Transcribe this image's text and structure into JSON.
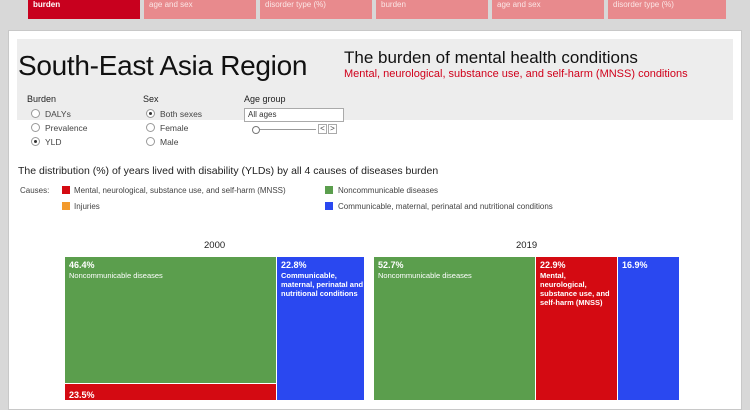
{
  "tabs": [
    {
      "label": "burden",
      "active": true
    },
    {
      "label": "age and sex",
      "active": false
    },
    {
      "label": "disorder type (%)",
      "active": false
    },
    {
      "label": "burden",
      "active": false
    },
    {
      "label": "age and sex",
      "active": false
    },
    {
      "label": "disorder type (%)",
      "active": false
    }
  ],
  "header": {
    "region": "South-East Asia Region",
    "title": "The burden of mental health conditions",
    "subtitle": "Mental, neurological, substance use, and self-harm (MNSS) conditions"
  },
  "controls": {
    "burden_label": "Burden",
    "burden_options": [
      {
        "label": "DALYs",
        "selected": false
      },
      {
        "label": "Prevalence",
        "selected": false
      },
      {
        "label": "YLD",
        "selected": true
      }
    ],
    "sex_label": "Sex",
    "sex_options": [
      {
        "label": "Both sexes",
        "selected": true
      },
      {
        "label": "Female",
        "selected": false
      },
      {
        "label": "Male",
        "selected": false
      }
    ],
    "age_label": "Age group",
    "age_value": "All ages",
    "prev_glyph": "<",
    "next_glyph": ">"
  },
  "distribution_title": "The distribution (%) of years lived with disability (YLDs) by all 4 causes of diseases burden",
  "legend": {
    "causes_label": "Causes:",
    "items": [
      {
        "label": "Mental, neurological, substance use, and self-harm (MNSS)",
        "color": "#d40a12"
      },
      {
        "label": "Injuries",
        "color": "#f39a2c"
      },
      {
        "label": "Noncommunicable diseases",
        "color": "#5b9e4d"
      },
      {
        "label": "Communicable, maternal, perinatal and nutritional conditions",
        "color": "#2a48f0"
      }
    ]
  },
  "chart_data": [
    {
      "type": "treemap",
      "year": "2000",
      "cells": [
        {
          "pct": "46.4%",
          "name": "Noncommunicable diseases",
          "color": "#5b9e4d"
        },
        {
          "pct": "22.8%",
          "name": "Communicable, maternal, perinatal and nutritional conditions",
          "color": "#2a48f0"
        },
        {
          "pct": "23.5%",
          "name": "",
          "color": "#d40a12"
        }
      ]
    },
    {
      "type": "treemap",
      "year": "2019",
      "cells": [
        {
          "pct": "52.7%",
          "name": "Noncommunicable diseases",
          "color": "#5b9e4d"
        },
        {
          "pct": "22.9%",
          "name": "Mental, neurological, substance use, and self-harm (MNSS)",
          "color": "#d40a12"
        },
        {
          "pct": "16.9%",
          "name": "",
          "color": "#2a48f0"
        }
      ]
    }
  ]
}
